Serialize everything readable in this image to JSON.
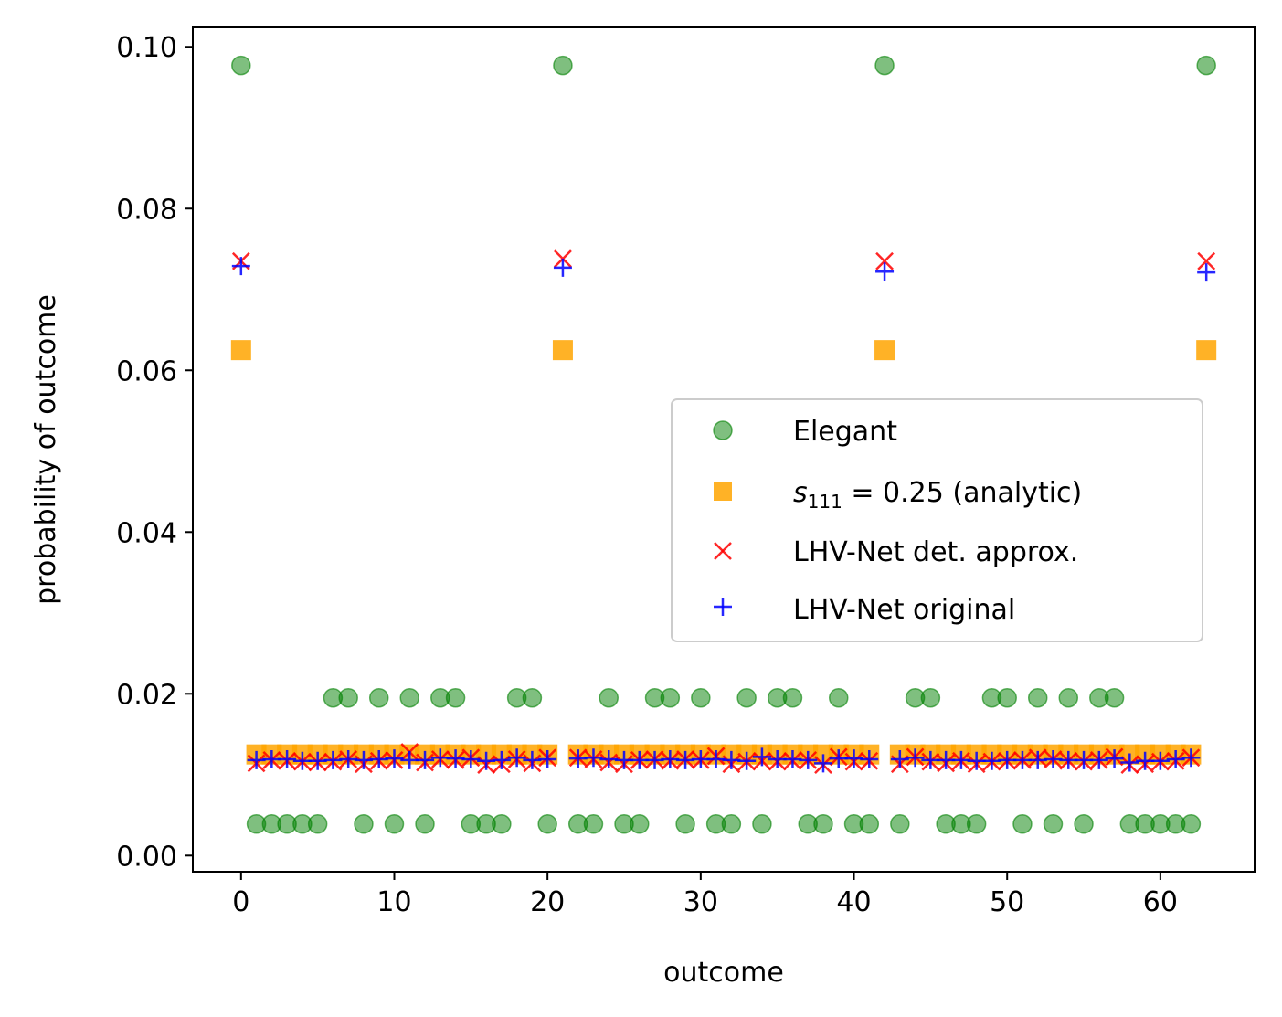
{
  "chart_data": {
    "type": "scatter",
    "title": "",
    "xlabel": "outcome",
    "ylabel": "probability of outcome",
    "xlim": [
      -3.15,
      66.15
    ],
    "ylim": [
      -0.002,
      0.1024
    ],
    "xticks": [
      0,
      10,
      20,
      30,
      40,
      50,
      60
    ],
    "xtick_labels": [
      "0",
      "10",
      "20",
      "30",
      "40",
      "50",
      "60"
    ],
    "yticks": [
      0.0,
      0.02,
      0.04,
      0.06,
      0.08,
      0.1
    ],
    "ytick_labels": [
      "0.00",
      "0.02",
      "0.04",
      "0.06",
      "0.08",
      "0.10"
    ],
    "grid": false,
    "legend_position": "center-right",
    "legend": {
      "elegant": "Elegant",
      "analytic_var": "s",
      "analytic_sub": "111",
      "analytic_rest": " = 0.25 (analytic)",
      "det": "LHV-Net det. approx.",
      "orig": "LHV-Net original"
    },
    "series": [
      {
        "name": "Elegant",
        "marker": "circle",
        "color": "#008000",
        "x": [
          0,
          1,
          2,
          3,
          4,
          5,
          6,
          7,
          8,
          9,
          10,
          11,
          12,
          13,
          14,
          15,
          16,
          17,
          18,
          19,
          20,
          21,
          22,
          23,
          24,
          25,
          26,
          27,
          28,
          29,
          30,
          31,
          32,
          33,
          34,
          35,
          36,
          37,
          38,
          39,
          40,
          41,
          42,
          43,
          44,
          45,
          46,
          47,
          48,
          49,
          50,
          51,
          52,
          53,
          54,
          55,
          56,
          57,
          58,
          59,
          60,
          61,
          62,
          63
        ],
        "y": [
          0.0977,
          0.0039,
          0.0039,
          0.0039,
          0.0039,
          0.0039,
          0.0195,
          0.0195,
          0.0039,
          0.0195,
          0.0039,
          0.0195,
          0.0039,
          0.0195,
          0.0195,
          0.0039,
          0.0039,
          0.0039,
          0.0195,
          0.0195,
          0.0039,
          0.0977,
          0.0039,
          0.0039,
          0.0195,
          0.0039,
          0.0039,
          0.0195,
          0.0195,
          0.0039,
          0.0195,
          0.0039,
          0.0039,
          0.0195,
          0.0039,
          0.0195,
          0.0195,
          0.0039,
          0.0039,
          0.0195,
          0.0039,
          0.0039,
          0.0977,
          0.0039,
          0.0195,
          0.0195,
          0.0039,
          0.0039,
          0.0039,
          0.0195,
          0.0195,
          0.0039,
          0.0195,
          0.0039,
          0.0195,
          0.0039,
          0.0195,
          0.0195,
          0.0039,
          0.0039,
          0.0039,
          0.0039,
          0.0039,
          0.0977
        ]
      },
      {
        "name": "s111 = 0.25 (analytic)",
        "marker": "square",
        "color": "#FFA500",
        "x": [
          0,
          1,
          2,
          3,
          4,
          5,
          6,
          7,
          8,
          9,
          10,
          11,
          12,
          13,
          14,
          15,
          16,
          17,
          18,
          19,
          20,
          21,
          22,
          23,
          24,
          25,
          26,
          27,
          28,
          29,
          30,
          31,
          32,
          33,
          34,
          35,
          36,
          37,
          38,
          39,
          40,
          41,
          42,
          43,
          44,
          45,
          46,
          47,
          48,
          49,
          50,
          51,
          52,
          53,
          54,
          55,
          56,
          57,
          58,
          59,
          60,
          61,
          62,
          63
        ],
        "y": [
          0.0625,
          0.0125,
          0.0125,
          0.0125,
          0.0125,
          0.0125,
          0.0125,
          0.0125,
          0.0125,
          0.0125,
          0.0125,
          0.0125,
          0.0125,
          0.0125,
          0.0125,
          0.0125,
          0.0125,
          0.0125,
          0.0125,
          0.0125,
          0.0125,
          0.0625,
          0.0125,
          0.0125,
          0.0125,
          0.0125,
          0.0125,
          0.0125,
          0.0125,
          0.0125,
          0.0125,
          0.0125,
          0.0125,
          0.0125,
          0.0125,
          0.0125,
          0.0125,
          0.0125,
          0.0125,
          0.0125,
          0.0125,
          0.0125,
          0.0625,
          0.0125,
          0.0125,
          0.0125,
          0.0125,
          0.0125,
          0.0125,
          0.0125,
          0.0125,
          0.0125,
          0.0125,
          0.0125,
          0.0125,
          0.0125,
          0.0125,
          0.0125,
          0.0125,
          0.0125,
          0.0125,
          0.0125,
          0.0125,
          0.0625
        ]
      },
      {
        "name": "LHV-Net det. approx.",
        "marker": "x",
        "color": "#FF0000",
        "x": [
          0,
          1,
          2,
          3,
          4,
          5,
          6,
          7,
          8,
          9,
          10,
          11,
          12,
          13,
          14,
          15,
          16,
          17,
          18,
          19,
          20,
          21,
          22,
          23,
          24,
          25,
          26,
          27,
          28,
          29,
          30,
          31,
          32,
          33,
          34,
          35,
          36,
          37,
          38,
          39,
          40,
          41,
          42,
          43,
          44,
          45,
          46,
          47,
          48,
          49,
          50,
          51,
          52,
          53,
          54,
          55,
          56,
          57,
          58,
          59,
          60,
          61,
          62,
          63
        ],
        "y": [
          0.0735,
          0.0114,
          0.0118,
          0.0117,
          0.0116,
          0.0115,
          0.0116,
          0.0119,
          0.0113,
          0.0117,
          0.0118,
          0.0128,
          0.0115,
          0.0119,
          0.0118,
          0.0121,
          0.0112,
          0.0113,
          0.0119,
          0.0114,
          0.0121,
          0.0738,
          0.0121,
          0.0119,
          0.0115,
          0.0113,
          0.0118,
          0.0119,
          0.0117,
          0.0119,
          0.0118,
          0.0123,
          0.0113,
          0.0116,
          0.0117,
          0.0116,
          0.0117,
          0.0118,
          0.0112,
          0.0122,
          0.0116,
          0.0117,
          0.0735,
          0.0113,
          0.0122,
          0.0116,
          0.0114,
          0.0117,
          0.0113,
          0.0116,
          0.0117,
          0.0118,
          0.0121,
          0.0119,
          0.0117,
          0.0116,
          0.0118,
          0.0122,
          0.0112,
          0.0113,
          0.0116,
          0.0117,
          0.0121,
          0.0735
        ]
      },
      {
        "name": "LHV-Net original",
        "marker": "plus",
        "color": "#0000FF",
        "x": [
          0,
          1,
          2,
          3,
          4,
          5,
          6,
          7,
          8,
          9,
          10,
          11,
          12,
          13,
          14,
          15,
          16,
          17,
          18,
          19,
          20,
          21,
          22,
          23,
          24,
          25,
          26,
          27,
          28,
          29,
          30,
          31,
          32,
          33,
          34,
          35,
          36,
          37,
          38,
          39,
          40,
          41,
          42,
          43,
          44,
          45,
          46,
          47,
          48,
          49,
          50,
          51,
          52,
          53,
          54,
          55,
          56,
          57,
          58,
          59,
          60,
          61,
          62,
          63
        ],
        "y": [
          0.0729,
          0.0118,
          0.0119,
          0.0119,
          0.0117,
          0.0117,
          0.0118,
          0.0119,
          0.0118,
          0.0119,
          0.012,
          0.0118,
          0.0118,
          0.0121,
          0.012,
          0.0119,
          0.0117,
          0.0118,
          0.0121,
          0.0118,
          0.0119,
          0.0727,
          0.012,
          0.0121,
          0.0119,
          0.0118,
          0.0118,
          0.0118,
          0.0119,
          0.0118,
          0.0119,
          0.0119,
          0.0118,
          0.0117,
          0.0122,
          0.0119,
          0.0119,
          0.0118,
          0.0114,
          0.012,
          0.012,
          0.0119,
          0.0722,
          0.0119,
          0.0121,
          0.0118,
          0.0118,
          0.0118,
          0.0117,
          0.0117,
          0.0118,
          0.0118,
          0.0118,
          0.0119,
          0.0118,
          0.0118,
          0.0118,
          0.012,
          0.0115,
          0.0117,
          0.0117,
          0.0119,
          0.0121,
          0.0721
        ]
      }
    ]
  }
}
